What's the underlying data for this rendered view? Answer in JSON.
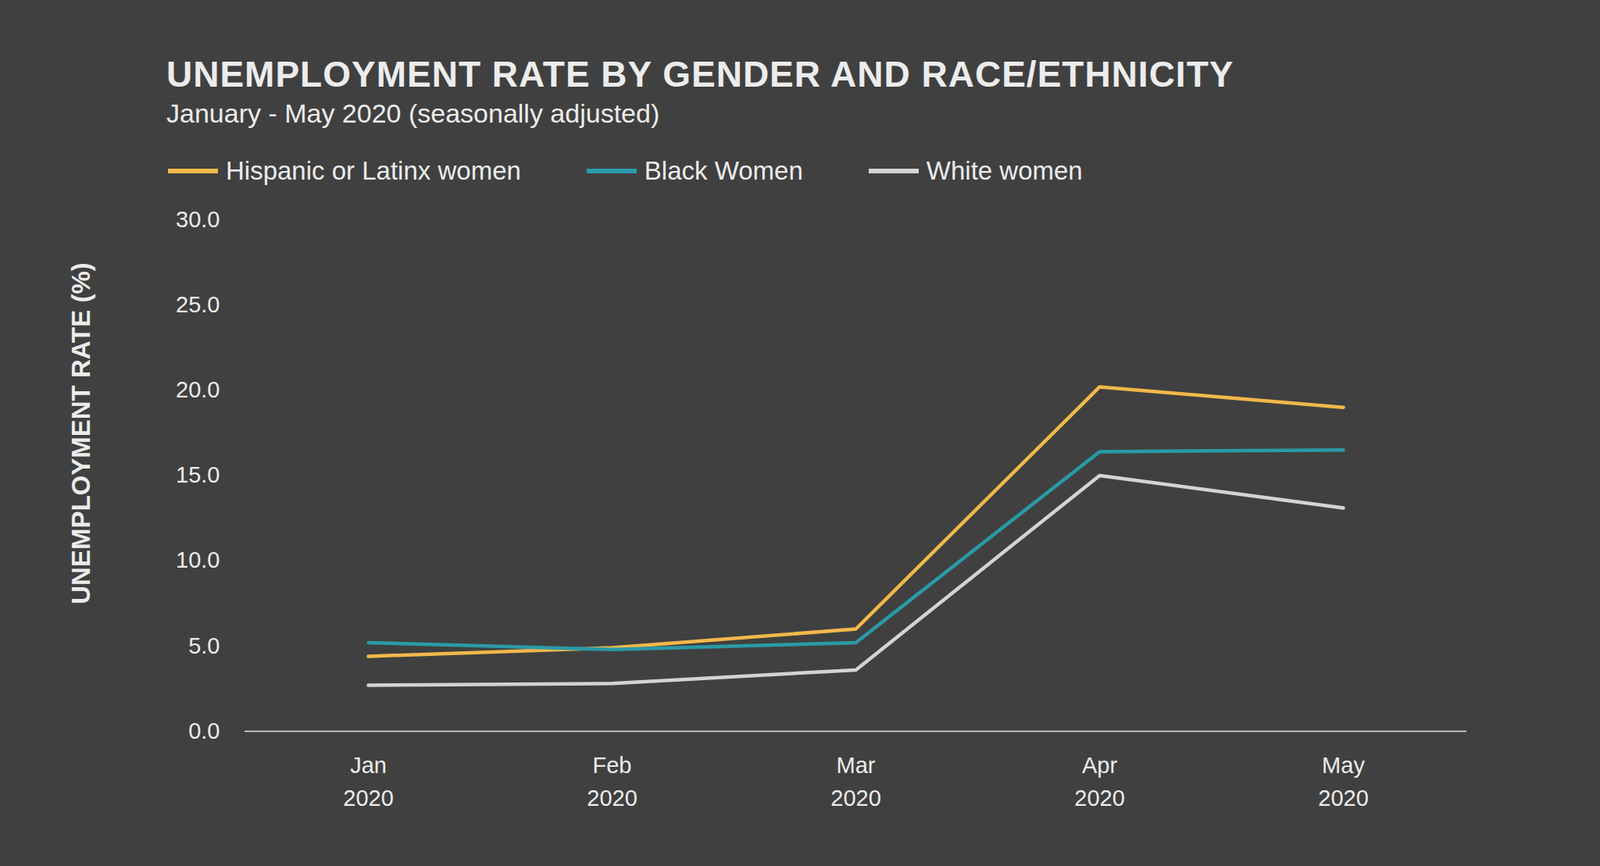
{
  "chart_data": {
    "type": "line",
    "title": "UNEMPLOYMENT RATE BY GENDER AND RACE/ETHNICITY",
    "subtitle": "January - May 2020 (seasonally adjusted)",
    "y_label": "UNEMPLOYMENT RATE (%)",
    "categories": [
      "Jan\n2020",
      "Feb\n2020",
      "Mar\n2020",
      "Apr\n2020",
      "May\n2020"
    ],
    "series": [
      {
        "name": "Hispanic or Latinx women",
        "color": "#f2b84b",
        "values": [
          4.4,
          4.9,
          6.0,
          20.2,
          19.0
        ]
      },
      {
        "name": "Black Women",
        "color": "#2a9aa8",
        "values": [
          5.2,
          4.8,
          5.2,
          16.4,
          16.5
        ]
      },
      {
        "name": "White women",
        "color": "#d4d4d4",
        "values": [
          2.7,
          2.8,
          3.6,
          15.0,
          13.1
        ]
      }
    ],
    "ylim": [
      0,
      30
    ],
    "yticks": [
      {
        "value": 0,
        "label": "0.0"
      },
      {
        "value": 5,
        "label": "5.0"
      },
      {
        "value": 10,
        "label": "10.0"
      },
      {
        "value": 15,
        "label": "15.0"
      },
      {
        "value": 20,
        "label": "20.0"
      },
      {
        "value": 25,
        "label": "25.0"
      },
      {
        "value": 30,
        "label": "30.0"
      }
    ],
    "grid": false
  }
}
